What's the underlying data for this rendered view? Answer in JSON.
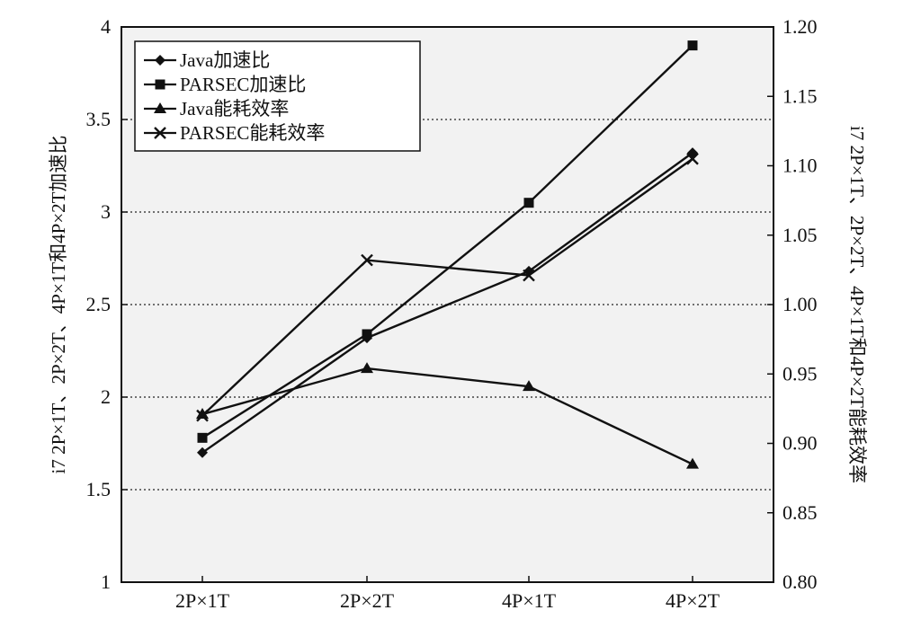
{
  "chart_data": {
    "type": "line",
    "categories": [
      "2P×1T",
      "2P×2T",
      "4P×1T",
      "4P×2T"
    ],
    "y_left": {
      "label": "i7 2P×1T、2P×2T、4P×1T和4P×2T加速比",
      "range": [
        1,
        4
      ],
      "ticks": [
        "1",
        "1.5",
        "2",
        "2.5",
        "3",
        "3.5",
        "4"
      ]
    },
    "y_right": {
      "label": "i7 2P×1T、2P×2T、4P×1T和4P×2T能耗效率",
      "range": [
        0.8,
        1.2
      ],
      "ticks": [
        "0.80",
        "0.85",
        "0.90",
        "0.95",
        "1.00",
        "1.05",
        "1.10",
        "1.15",
        "1.20"
      ]
    },
    "grid": "horizontal-dotted",
    "legend_position": "top-left",
    "series": [
      {
        "name": "Java加速比",
        "axis": "left",
        "marker": "diamond",
        "values": [
          1.7,
          2.32,
          2.68,
          3.32
        ]
      },
      {
        "name": "PARSEC加速比",
        "axis": "left",
        "marker": "square",
        "values": [
          1.78,
          2.34,
          3.05,
          3.9
        ]
      },
      {
        "name": "Java能耗效率",
        "axis": "right",
        "marker": "triangle",
        "values": [
          0.921,
          0.954,
          0.941,
          0.885
        ]
      },
      {
        "name": "PARSEC能耗效率",
        "axis": "right",
        "marker": "x",
        "values": [
          0.92,
          1.032,
          1.021,
          1.105
        ]
      }
    ]
  }
}
